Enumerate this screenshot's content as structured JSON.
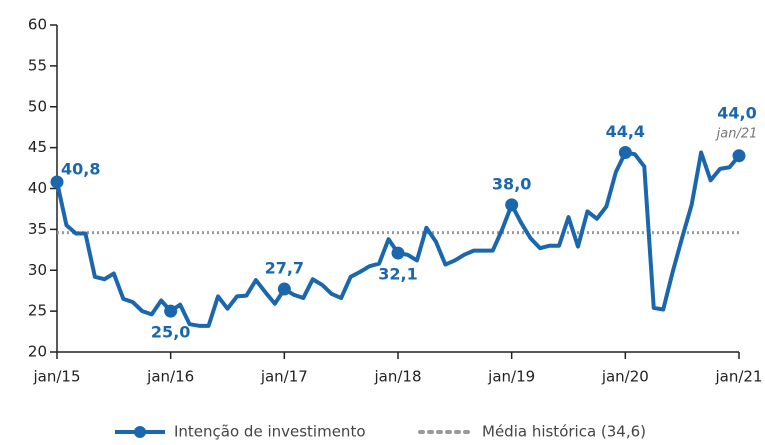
{
  "chart_data": {
    "type": "line",
    "categories": [
      "jan/15",
      null,
      null,
      null,
      null,
      null,
      null,
      null,
      null,
      null,
      null,
      null,
      "jan/16",
      null,
      null,
      null,
      null,
      null,
      null,
      null,
      null,
      null,
      null,
      null,
      "jan/17",
      null,
      null,
      null,
      null,
      null,
      null,
      null,
      null,
      null,
      null,
      null,
      "jan/18",
      null,
      null,
      null,
      null,
      null,
      null,
      null,
      null,
      null,
      null,
      null,
      "jan/19",
      null,
      null,
      null,
      null,
      null,
      null,
      null,
      null,
      null,
      null,
      null,
      "jan/20",
      null,
      null,
      null,
      null,
      null,
      null,
      null,
      null,
      null,
      null,
      null,
      "jan/21"
    ],
    "series": [
      {
        "name": "Intenção de investimento",
        "color": "#1b67ad",
        "values": [
          40.8,
          35.5,
          34.5,
          34.5,
          29.2,
          28.9,
          29.6,
          26.5,
          26.1,
          25.0,
          24.6,
          26.3,
          25.0,
          25.8,
          23.4,
          23.2,
          23.2,
          26.8,
          25.3,
          26.8,
          26.9,
          28.8,
          27.3,
          25.9,
          27.7,
          27.0,
          26.6,
          28.9,
          28.2,
          27.1,
          26.6,
          29.2,
          29.8,
          30.5,
          30.8,
          33.8,
          32.1,
          31.9,
          31.2,
          35.2,
          33.5,
          30.7,
          31.2,
          31.9,
          32.4,
          32.4,
          32.4,
          35.0,
          38.0,
          35.8,
          33.9,
          32.7,
          33.0,
          33.0,
          36.5,
          32.9,
          37.2,
          36.3,
          37.8,
          42.0,
          44.4,
          44.2,
          42.7,
          25.4,
          25.2,
          29.8,
          34.0,
          38.0,
          44.4,
          41.0,
          42.4,
          42.6,
          44.0
        ],
        "value_labels": [
          "40,8",
          null,
          null,
          null,
          null,
          null,
          null,
          null,
          null,
          null,
          null,
          null,
          "25,0",
          null,
          null,
          null,
          null,
          null,
          null,
          null,
          null,
          null,
          null,
          null,
          "27,7",
          null,
          null,
          null,
          null,
          null,
          null,
          null,
          null,
          null,
          null,
          null,
          "32,1",
          null,
          null,
          null,
          null,
          null,
          null,
          null,
          null,
          null,
          null,
          null,
          "38,0",
          null,
          null,
          null,
          null,
          null,
          null,
          null,
          null,
          null,
          null,
          null,
          "44,4",
          null,
          null,
          null,
          null,
          null,
          null,
          null,
          null,
          null,
          null,
          null,
          "44,0"
        ]
      }
    ],
    "reference_line": {
      "name": "Média histórica (34,6)",
      "value": 34.6,
      "color": "#9a9a9a"
    },
    "annotation": "jan/21",
    "ylim": [
      20,
      60
    ],
    "yticks": [
      20,
      25,
      30,
      35,
      40,
      45,
      50,
      55,
      60
    ],
    "legend": "bottom"
  }
}
